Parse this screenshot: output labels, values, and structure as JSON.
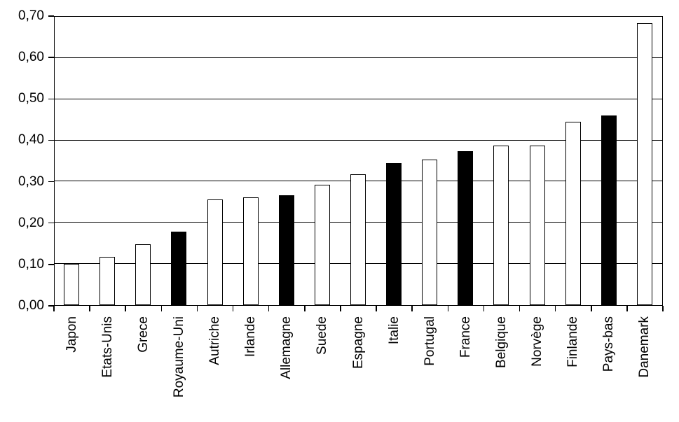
{
  "chart_data": {
    "type": "bar",
    "title": "",
    "xlabel": "",
    "ylabel": "",
    "categories": [
      "Japon",
      "Etats-Unis",
      "Grece",
      "Royaume-Uni",
      "Autriche",
      "Irlande",
      "Allemagne",
      "Suede",
      "Espagne",
      "Italie",
      "Portugal",
      "France",
      "Belgique",
      "Norvège",
      "Finlande",
      "Pays-bas",
      "Danemark"
    ],
    "values": [
      0.101,
      0.118,
      0.148,
      0.178,
      0.257,
      0.262,
      0.266,
      0.293,
      0.317,
      0.345,
      0.353,
      0.374,
      0.387,
      0.387,
      0.445,
      0.46,
      0.685
    ],
    "fills": [
      "#ffffff",
      "#ffffff",
      "#ffffff",
      "#000000",
      "#ffffff",
      "#ffffff",
      "#000000",
      "#ffffff",
      "#ffffff",
      "#000000",
      "#ffffff",
      "#000000",
      "#ffffff",
      "#ffffff",
      "#ffffff",
      "#000000",
      "#ffffff"
    ],
    "ylim": [
      0,
      0.7
    ],
    "ytick_step": 0.1,
    "ytick_labels": [
      "0,00",
      "0,10",
      "0,20",
      "0,30",
      "0,40",
      "0,50",
      "0,60",
      "0,70"
    ],
    "grid": true,
    "legend": null,
    "colors": {
      "background": "#ffffff",
      "axis": "#000000",
      "grid": "#000000",
      "bar_outline": "#000000",
      "bar_fill_default": "#ffffff",
      "bar_fill_highlight": "#000000"
    }
  }
}
